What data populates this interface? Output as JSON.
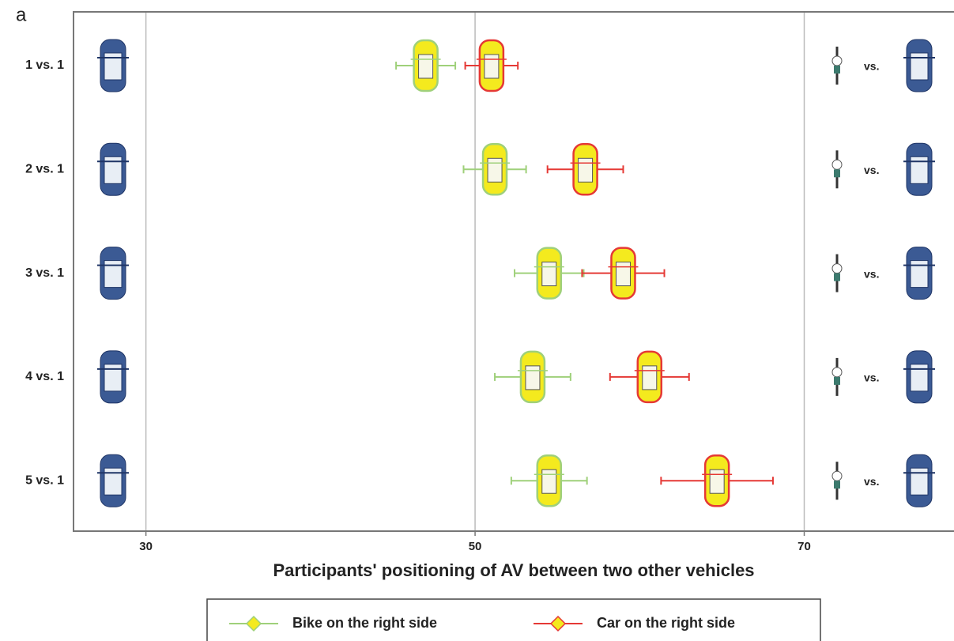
{
  "chart_data": {
    "type": "errorbar",
    "panel_label": "a",
    "xlabel": "Participants' positioning of AV between two other vehicles",
    "categories": [
      "1 vs. 1",
      "2 vs. 1",
      "3 vs. 1",
      "4 vs. 1",
      "5 vs. 1"
    ],
    "row_note": "vs.",
    "series": [
      {
        "name": "Bike on the right side",
        "color": "#9fd07a",
        "marker_color": "#f4ea1e",
        "values": [
          47.0,
          51.2,
          54.5,
          53.5,
          54.5
        ],
        "errors": [
          1.8,
          1.9,
          2.1,
          2.3,
          2.3
        ]
      },
      {
        "name": "Car on the right side",
        "color": "#e53935",
        "marker_color": "#f4ea1e",
        "values": [
          51.0,
          56.7,
          59.0,
          60.6,
          64.7
        ],
        "errors": [
          1.6,
          2.3,
          2.5,
          2.4,
          3.4
        ]
      }
    ],
    "xlim": [
      25.6,
      79.1
    ],
    "xticks": [
      30,
      50,
      70
    ],
    "grid": true
  }
}
